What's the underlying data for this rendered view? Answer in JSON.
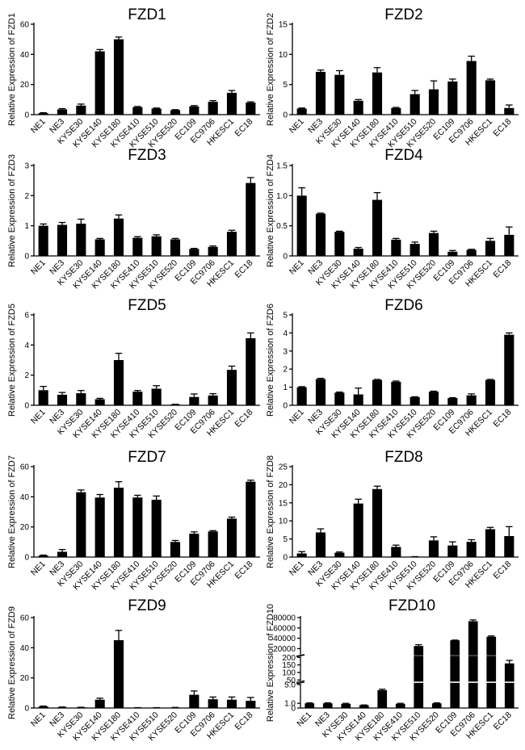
{
  "chart_data": [
    {
      "type": "bar",
      "title": "FZD1",
      "ylabel": "Relative Expression of FZD1",
      "ylim": [
        0,
        60
      ],
      "yticks": [
        "0",
        "20",
        "40",
        "60"
      ],
      "categories": [
        "NE1",
        "NE3",
        "KYSE30",
        "KYSE140",
        "KYSE180",
        "KYSE410",
        "KYSE510",
        "KYSE520",
        "EC109",
        "EC9706",
        "HKESC1",
        "EC18"
      ],
      "values": [
        1,
        3.5,
        6,
        42,
        50,
        5,
        4,
        3,
        5.5,
        8.5,
        14.5,
        8
      ],
      "errors": [
        0.3,
        0.5,
        1,
        1.2,
        1.5,
        0.4,
        0.4,
        0.3,
        0.5,
        0.8,
        1.5,
        0.5
      ]
    },
    {
      "type": "bar",
      "title": "FZD2",
      "ylabel": "Relative Expression of FZD2",
      "ylim": [
        0,
        15
      ],
      "yticks": [
        "0",
        "5",
        "10",
        "15"
      ],
      "categories": [
        "NE1",
        "NE3",
        "KYSE30",
        "KYSE140",
        "KYSE180",
        "KYSE410",
        "KYSE510",
        "KYSE520",
        "EC109",
        "EC9706",
        "HKESC1",
        "EC18"
      ],
      "values": [
        1,
        7.1,
        6.6,
        2.3,
        7,
        1.1,
        3.4,
        4.2,
        5.5,
        8.9,
        5.7,
        1.1
      ],
      "errors": [
        0.1,
        0.3,
        0.7,
        0.2,
        0.8,
        0.1,
        0.6,
        1.4,
        0.4,
        0.8,
        0.2,
        0.5
      ]
    },
    {
      "type": "bar",
      "title": "FZD3",
      "ylabel": "Relative Expression of FZD3",
      "ylim": [
        0,
        3
      ],
      "yticks": [
        "0",
        "1",
        "2",
        "3"
      ],
      "categories": [
        "NE1",
        "NE3",
        "KYSE30",
        "KYSE140",
        "KYSE180",
        "KYSE410",
        "KYSE510",
        "KYSE520",
        "EC109",
        "EC9706",
        "HKESC1",
        "EC18"
      ],
      "values": [
        1,
        1.03,
        1.07,
        0.55,
        1.24,
        0.6,
        0.65,
        0.55,
        0.23,
        0.3,
        0.8,
        2.42
      ],
      "errors": [
        0.06,
        0.08,
        0.15,
        0.03,
        0.12,
        0.04,
        0.05,
        0.03,
        0.02,
        0.03,
        0.05,
        0.18
      ]
    },
    {
      "type": "bar",
      "title": "FZD4",
      "ylabel": "Relative Expression of FZD4",
      "ylim": [
        0,
        1.5
      ],
      "yticks": [
        "0",
        "0.5",
        "1.0",
        "1.5"
      ],
      "categories": [
        "NE1",
        "NE3",
        "KYSE30",
        "KYSE140",
        "KYSE180",
        "KYSE410",
        "KYSE510",
        "KYSE520",
        "EC109",
        "EC9706",
        "HKESC1",
        "EC18"
      ],
      "values": [
        1,
        0.7,
        0.4,
        0.12,
        0.93,
        0.27,
        0.2,
        0.38,
        0.07,
        0.1,
        0.25,
        0.35
      ],
      "errors": [
        0.13,
        0.01,
        0.01,
        0.02,
        0.12,
        0.02,
        0.03,
        0.03,
        0.02,
        0.01,
        0.04,
        0.13
      ]
    },
    {
      "type": "bar",
      "title": "FZD5",
      "ylabel": "Relative Expression of FZD5",
      "ylim": [
        0,
        6
      ],
      "yticks": [
        "0",
        "2",
        "4",
        "6"
      ],
      "categories": [
        "NE1",
        "NE3",
        "KYSE30",
        "KYSE140",
        "KYSE180",
        "KYSE410",
        "KYSE510",
        "KYSE520",
        "EC109",
        "EC9706",
        "HKESC1",
        "EC18"
      ],
      "values": [
        1,
        0.7,
        0.8,
        0.4,
        3,
        0.9,
        1.1,
        0.05,
        0.55,
        0.65,
        2.35,
        4.45
      ],
      "errors": [
        0.25,
        0.15,
        0.18,
        0.06,
        0.45,
        0.08,
        0.2,
        0.02,
        0.2,
        0.12,
        0.25,
        0.35
      ]
    },
    {
      "type": "bar",
      "title": "FZD6",
      "ylabel": "Relative Expression of FZD6",
      "ylim": [
        0,
        5
      ],
      "yticks": [
        "0",
        "1",
        "2",
        "3",
        "4",
        "5"
      ],
      "categories": [
        "NE1",
        "NE3",
        "KYSE30",
        "KYSE140",
        "KYSE180",
        "KYSE410",
        "KYSE510",
        "KYSE520",
        "EC109",
        "EC9706",
        "HKESC1",
        "EC18"
      ],
      "values": [
        1,
        1.45,
        0.7,
        0.6,
        1.4,
        1.3,
        0.45,
        0.75,
        0.4,
        0.55,
        1.4,
        3.9
      ],
      "errors": [
        0.03,
        0.04,
        0.03,
        0.35,
        0.03,
        0.04,
        0.02,
        0.03,
        0.02,
        0.08,
        0.03,
        0.1
      ]
    },
    {
      "type": "bar",
      "title": "FZD7",
      "ylabel": "Relative Expression of FZD7",
      "ylim": [
        0,
        60
      ],
      "yticks": [
        "0",
        "20",
        "40",
        "60"
      ],
      "categories": [
        "NE1",
        "NE3",
        "KYSE30",
        "KYSE140",
        "KYSE180",
        "KYSE410",
        "KYSE510",
        "KYSE520",
        "EC109",
        "EC9706",
        "HKESC1",
        "EC18"
      ],
      "values": [
        1,
        3.5,
        43,
        39.5,
        46,
        39.5,
        38,
        10,
        15.5,
        17,
        25.5,
        50
      ],
      "errors": [
        0.3,
        1.5,
        1.5,
        2,
        4,
        1.5,
        2.5,
        1,
        1.2,
        0.5,
        1,
        1
      ]
    },
    {
      "type": "bar",
      "title": "FZD8",
      "ylabel": "Relative Expression of FZD8",
      "ylim": [
        0,
        25
      ],
      "yticks": [
        "0",
        "5",
        "10",
        "15",
        "20",
        "25"
      ],
      "categories": [
        "NE1",
        "NE3",
        "KYSE30",
        "KYSE140",
        "KYSE180",
        "KYSE410",
        "KYSE510",
        "KYSE520",
        "EC109",
        "EC9706",
        "HKESC1",
        "EC18"
      ],
      "values": [
        1,
        6.8,
        1.2,
        14.8,
        18.8,
        2.8,
        0.1,
        4.6,
        3.2,
        4.2,
        7.7,
        5.8
      ],
      "errors": [
        0.5,
        1,
        0.2,
        1.2,
        0.8,
        0.5,
        0.02,
        1,
        1,
        0.6,
        0.5,
        2.6
      ]
    },
    {
      "type": "bar",
      "title": "FZD9",
      "ylabel": "Relative Expression of FZD9",
      "ylim": [
        0,
        60
      ],
      "yticks": [
        "0",
        "20",
        "40",
        "60"
      ],
      "categories": [
        "NE1",
        "NE3",
        "KYSE30",
        "KYSE140",
        "KYSE180",
        "KYSE410",
        "KYSE510",
        "KYSE520",
        "EC109",
        "EC9706",
        "HKESC1",
        "EC18"
      ],
      "values": [
        1,
        0.5,
        0.4,
        5.5,
        45,
        0.2,
        0.2,
        0.3,
        8.8,
        5.8,
        5.5,
        4.8
      ],
      "errors": [
        0.3,
        0.2,
        0.1,
        1,
        6.5,
        0.05,
        0.05,
        0.1,
        2.5,
        1.5,
        1.8,
        2.2
      ]
    },
    {
      "type": "bar",
      "title": "FZD10",
      "ylabel": "Relative Expression of FZD10",
      "scale": "broken",
      "yticks": [
        "0",
        "1.0",
        "5.0",
        "50",
        "100",
        "150",
        "200",
        "20000",
        "40000",
        "60000",
        "80000"
      ],
      "categories": [
        "NE1",
        "NE3",
        "KYSE30",
        "KYSE140",
        "KYSE180",
        "KYSE410",
        "KYSE510",
        "KYSE520",
        "EC109",
        "EC9706",
        "HKESC1",
        "EC18"
      ],
      "values": [
        1,
        1,
        0.9,
        0.6,
        3.8,
        0.9,
        25000,
        1,
        36000,
        73000,
        43000,
        160
      ],
      "errors": [
        0.1,
        0.1,
        0.1,
        0.05,
        0.2,
        0.1,
        2500,
        0.1,
        500,
        2500,
        1500,
        20
      ]
    }
  ]
}
